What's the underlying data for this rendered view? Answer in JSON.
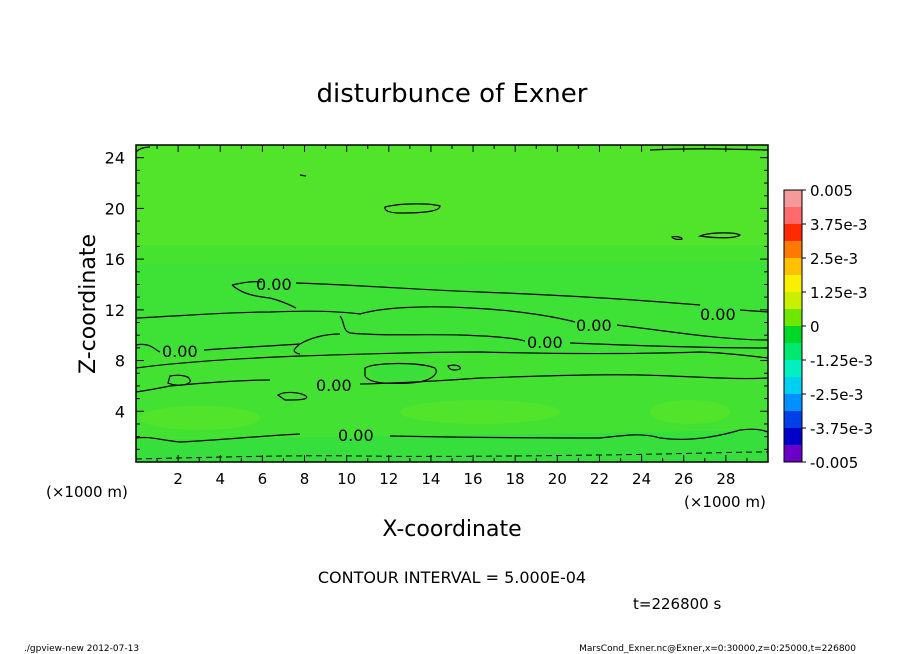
{
  "chart_data": {
    "type": "heatmap",
    "title": "disturbunce of Exner",
    "xlabel": "X-coordinate",
    "ylabel": "Z-coordinate",
    "x_unit": "(×1000 m)",
    "x_unit_bottom_right": "(×1000 m)",
    "xlim": [
      0,
      30
    ],
    "ylim": [
      0,
      25
    ],
    "x_ticks": [
      "2",
      "4",
      "6",
      "8",
      "10",
      "12",
      "14",
      "16",
      "18",
      "20",
      "22",
      "24",
      "26",
      "28"
    ],
    "y_ticks": [
      "4",
      "8",
      "12",
      "16",
      "20",
      "24"
    ],
    "contour_interval_text": "CONTOUR INTERVAL = 5.000E-04",
    "contour_label": "0.00",
    "time_text": "t=226800 s",
    "colorbar": {
      "labels": [
        "0.005",
        "3.75e-3",
        "2.5e-3",
        "1.25e-3",
        "0",
        "-1.25e-3",
        "-2.5e-3",
        "-3.75e-3",
        "-0.005"
      ],
      "range": [
        -0.005,
        0.005
      ],
      "colors": [
        "#f39a9a",
        "#ff6a6a",
        "#ff2a00",
        "#ff7a00",
        "#ffc000",
        "#f8f000",
        "#c8f000",
        "#6ee800",
        "#00d828",
        "#00e870",
        "#00f0c0",
        "#00d0f0",
        "#0090ff",
        "#0040e8",
        "#0000c8",
        "#6a00c8"
      ]
    },
    "field_colors": {
      "positive_weak": "#4fe31f",
      "zero": "#38e23b",
      "negative_weak": "#28dd4a"
    }
  },
  "footer": {
    "left": "./gpview-new   2012-07-13",
    "right": "MarsCond_Exner.nc@Exner,x=0:30000,z=0:25000,t=226800"
  }
}
